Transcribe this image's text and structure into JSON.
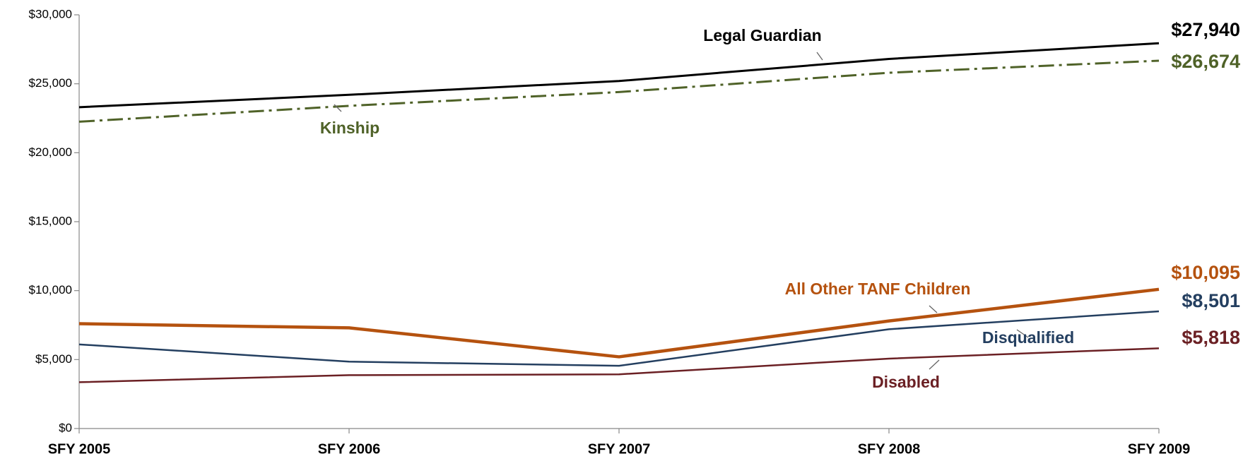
{
  "chart_data": {
    "type": "line",
    "categories": [
      "SFY 2005",
      "SFY 2006",
      "SFY 2007",
      "SFY 2008",
      "SFY 2009"
    ],
    "series": [
      {
        "name": "Legal Guardian",
        "color": "#000000",
        "values": [
          23300,
          24200,
          25200,
          26800,
          27940
        ],
        "value_labels": [
          null,
          null,
          null,
          null,
          "$27,940"
        ]
      },
      {
        "name": "Kinship",
        "color": "#4f6228",
        "dash": "dashdot",
        "values": [
          22250,
          23400,
          24400,
          25800,
          26674
        ],
        "value_labels": [
          null,
          null,
          null,
          null,
          "$26,674"
        ]
      },
      {
        "name": "All Other TANF Children",
        "color": "#b5520f",
        "values": [
          7600,
          7300,
          5200,
          7800,
          10095
        ],
        "value_labels": [
          null,
          null,
          null,
          null,
          "$10,095"
        ]
      },
      {
        "name": "Disqualified",
        "color": "#243f60",
        "values": [
          6100,
          4850,
          4550,
          7200,
          8501
        ],
        "value_labels": [
          null,
          null,
          null,
          null,
          "$8,501"
        ]
      },
      {
        "name": "Disabled",
        "color": "#6b2024",
        "values": [
          3360,
          3870,
          3930,
          5070,
          5818
        ],
        "value_labels": [
          null,
          null,
          null,
          null,
          "$5,818"
        ]
      }
    ],
    "ylim": [
      0,
      30000
    ],
    "yticks": [
      {
        "value": 0,
        "label": "$0"
      },
      {
        "value": 5000,
        "label": "$5,000"
      },
      {
        "value": 10000,
        "label": "$10,000"
      },
      {
        "value": 15000,
        "label": "$15,000"
      },
      {
        "value": 20000,
        "label": "$20,000"
      },
      {
        "value": 25000,
        "label": "$25,000"
      },
      {
        "value": 30000,
        "label": "$30,000"
      }
    ],
    "grid": false
  }
}
